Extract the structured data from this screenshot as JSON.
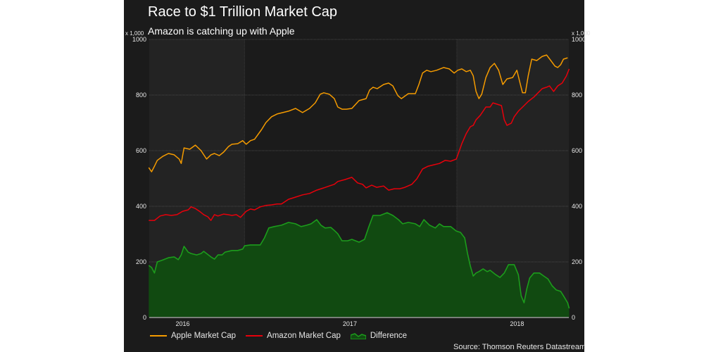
{
  "chart_data": {
    "type": "line",
    "title": "Race to $1 Trillion Market Cap",
    "subtitle": "Amazon is catching up with Apple",
    "y_unit_label": "x 1,000",
    "ylim": [
      0,
      1000
    ],
    "y_ticks": [
      0,
      200,
      400,
      600,
      800,
      1000
    ],
    "y_tick_labels": [
      "0",
      "200",
      "400",
      "600",
      "800",
      "1000"
    ],
    "xlim": [
      2016.3,
      2018.81
    ],
    "x_ticks": [
      2016.5,
      2017.5,
      2018.5
    ],
    "x_tick_labels": [
      "2016",
      "2017",
      "2018"
    ],
    "x_gridlines": [
      2016.87,
      2018.14
    ],
    "grid": true,
    "legend_position": "bottom-left",
    "source": "Source: Thomson Reuters Datastream",
    "colors": {
      "apple": "#f59b00",
      "amazon": "#e8000b",
      "difference_line": "#1c9c1c",
      "difference_fill": "#114a11",
      "background": "#1b1b1b",
      "band": "#232323"
    },
    "series": [
      {
        "name": "Apple Market Cap",
        "kind": "line",
        "x": [
          2016.297,
          2016.314,
          2016.331,
          2016.348,
          2016.382,
          2016.415,
          2016.449,
          2016.479,
          2016.491,
          2016.508,
          2016.542,
          2016.576,
          2016.61,
          2016.643,
          2016.669,
          2016.69,
          2016.719,
          2016.745,
          2016.774,
          2016.795,
          2016.829,
          2016.859,
          2016.88,
          2016.905,
          2016.93,
          2016.972,
          2016.998,
          2017.032,
          2017.065,
          2017.099,
          2017.133,
          2017.175,
          2017.217,
          2017.259,
          2017.293,
          2017.323,
          2017.344,
          2017.377,
          2017.407,
          2017.428,
          2017.453,
          2017.479,
          2017.512,
          2017.555,
          2017.597,
          2017.618,
          2017.639,
          2017.664,
          2017.702,
          2017.732,
          2017.757,
          2017.787,
          2017.808,
          2017.85,
          2017.892,
          2017.913,
          2017.935,
          2017.96,
          2017.985,
          2018.019,
          2018.061,
          2018.095,
          2018.124,
          2018.145,
          2018.17,
          2018.196,
          2018.221,
          2018.238,
          2018.255,
          2018.272,
          2018.289,
          2018.314,
          2018.339,
          2018.365,
          2018.39,
          2018.415,
          2018.44,
          2018.474,
          2018.499,
          2018.516,
          2018.533,
          2018.55,
          2018.567,
          2018.588,
          2018.618,
          2018.651,
          2018.677,
          2018.702,
          2018.727,
          2018.744,
          2018.761,
          2018.778,
          2018.803
        ],
        "values": [
          539,
          524,
          544,
          565,
          580,
          590,
          585,
          570,
          554,
          610,
          605,
          620,
          600,
          570,
          585,
          590,
          582,
          595,
          615,
          623,
          625,
          636,
          623,
          636,
          641,
          676,
          701,
          722,
          732,
          737,
          742,
          752,
          737,
          752,
          772,
          803,
          808,
          803,
          787,
          757,
          749,
          749,
          752,
          780,
          787,
          818,
          828,
          823,
          838,
          843,
          833,
          798,
          787,
          805,
          805,
          838,
          879,
          889,
          884,
          889,
          899,
          894,
          879,
          889,
          894,
          884,
          889,
          869,
          813,
          787,
          803,
          863,
          899,
          914,
          889,
          838,
          858,
          863,
          889,
          848,
          808,
          808,
          869,
          929,
          924,
          939,
          944,
          924,
          904,
          899,
          909,
          929,
          934
        ]
      },
      {
        "name": "Amazon Market Cap",
        "kind": "line",
        "x": [
          2016.297,
          2016.331,
          2016.365,
          2016.398,
          2016.432,
          2016.466,
          2016.5,
          2016.533,
          2016.55,
          2016.576,
          2016.605,
          2016.626,
          2016.651,
          2016.669,
          2016.69,
          2016.711,
          2016.745,
          2016.77,
          2016.795,
          2016.821,
          2016.846,
          2016.88,
          2016.905,
          2016.93,
          2016.964,
          2016.998,
          2017.032,
          2017.065,
          2017.091,
          2017.133,
          2017.175,
          2017.217,
          2017.259,
          2017.302,
          2017.344,
          2017.377,
          2017.407,
          2017.428,
          2017.47,
          2017.512,
          2017.546,
          2017.576,
          2017.597,
          2017.631,
          2017.66,
          2017.702,
          2017.732,
          2017.766,
          2017.799,
          2017.829,
          2017.871,
          2017.901,
          2017.935,
          2017.968,
          2018.002,
          2018.036,
          2018.07,
          2018.103,
          2018.137,
          2018.17,
          2018.196,
          2018.221,
          2018.238,
          2018.255,
          2018.28,
          2018.314,
          2018.339,
          2018.356,
          2018.381,
          2018.407,
          2018.424,
          2018.44,
          2018.466,
          2018.483,
          2018.508,
          2018.542,
          2018.567,
          2018.601,
          2018.626,
          2018.651,
          2018.677,
          2018.694,
          2018.719,
          2018.744,
          2018.77,
          2018.795,
          2018.812
        ],
        "values": [
          349,
          349,
          365,
          370,
          367,
          370,
          382,
          387,
          398,
          392,
          380,
          370,
          362,
          349,
          370,
          365,
          372,
          370,
          367,
          370,
          360,
          382,
          390,
          387,
          398,
          403,
          405,
          408,
          408,
          425,
          433,
          441,
          446,
          458,
          466,
          473,
          479,
          489,
          496,
          504,
          484,
          479,
          466,
          476,
          468,
          473,
          458,
          463,
          463,
          468,
          479,
          499,
          534,
          544,
          549,
          554,
          565,
          562,
          570,
          625,
          661,
          686,
          691,
          711,
          727,
          757,
          757,
          772,
          767,
          762,
          711,
          691,
          699,
          722,
          742,
          762,
          777,
          793,
          808,
          823,
          828,
          833,
          813,
          833,
          843,
          868,
          894
        ]
      },
      {
        "name": "Difference",
        "kind": "area",
        "x": [
          2016.297,
          2016.314,
          2016.331,
          2016.348,
          2016.373,
          2016.415,
          2016.449,
          2016.474,
          2016.491,
          2016.508,
          2016.533,
          2016.55,
          2016.584,
          2016.61,
          2016.626,
          2016.643,
          2016.669,
          2016.69,
          2016.711,
          2016.736,
          2016.753,
          2016.795,
          2016.829,
          2016.859,
          2016.871,
          2016.905,
          2016.93,
          2016.964,
          2016.989,
          2017.015,
          2017.048,
          2017.091,
          2017.133,
          2017.175,
          2017.209,
          2017.242,
          2017.268,
          2017.302,
          2017.327,
          2017.352,
          2017.386,
          2017.411,
          2017.428,
          2017.453,
          2017.487,
          2017.512,
          2017.555,
          2017.588,
          2017.614,
          2017.639,
          2017.681,
          2017.723,
          2017.757,
          2017.791,
          2017.816,
          2017.85,
          2017.892,
          2017.918,
          2017.943,
          2017.977,
          2018.011,
          2018.036,
          2018.061,
          2018.103,
          2018.137,
          2018.162,
          2018.187,
          2018.204,
          2018.221,
          2018.238,
          2018.255,
          2018.272,
          2018.297,
          2018.322,
          2018.339,
          2018.373,
          2018.398,
          2018.424,
          2018.449,
          2018.483,
          2018.508,
          2018.525,
          2018.542,
          2018.559,
          2018.576,
          2018.601,
          2018.635,
          2018.66,
          2018.685,
          2018.71,
          2018.735,
          2018.761,
          2018.778,
          2018.803,
          2018.812
        ],
        "values": [
          187,
          180,
          160,
          200,
          205,
          215,
          218,
          208,
          225,
          256,
          235,
          230,
          225,
          230,
          238,
          230,
          218,
          210,
          225,
          225,
          235,
          241,
          241,
          246,
          258,
          261,
          261,
          261,
          286,
          322,
          327,
          332,
          342,
          337,
          327,
          332,
          337,
          352,
          332,
          322,
          324,
          311,
          301,
          276,
          276,
          281,
          271,
          281,
          327,
          367,
          367,
          377,
          367,
          352,
          337,
          342,
          337,
          327,
          352,
          332,
          322,
          337,
          327,
          327,
          311,
          306,
          286,
          230,
          185,
          149,
          160,
          165,
          175,
          165,
          170,
          154,
          144,
          160,
          190,
          190,
          154,
          78,
          53,
          104,
          142,
          160,
          160,
          149,
          139,
          114,
          99,
          94,
          78,
          53,
          33
        ]
      }
    ]
  }
}
